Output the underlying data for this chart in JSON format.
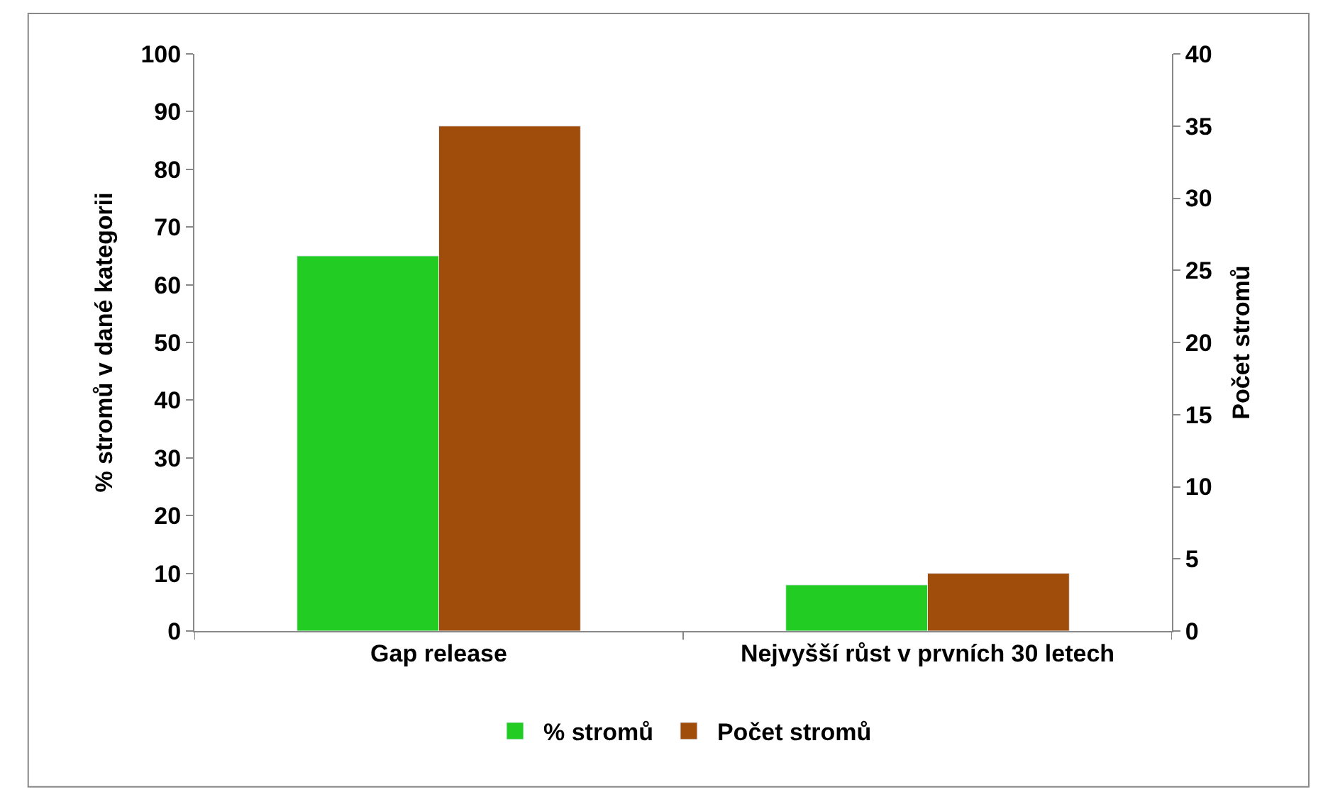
{
  "chart_data": {
    "type": "bar",
    "ylabel": "% stromů v dané kategorii",
    "y2label": "Počet stromů",
    "categories": [
      "Gap release",
      "Nejvyšší růst v prvních 30 letech"
    ],
    "series": [
      {
        "name": "% stromů",
        "color": "#22cc22",
        "values": [
          65,
          8
        ]
      },
      {
        "name": "Počet stromů",
        "color": "#a04c0a",
        "values": [
          35,
          4
        ],
        "axis": "y2"
      }
    ],
    "ylim": [
      0,
      100
    ],
    "yticks": [
      0,
      10,
      20,
      30,
      40,
      50,
      60,
      70,
      80,
      90,
      100
    ],
    "y2lim": [
      0,
      40
    ],
    "y2ticks": [
      0,
      5,
      10,
      15,
      20,
      25,
      30,
      35,
      40
    ],
    "legend": "bottom"
  }
}
